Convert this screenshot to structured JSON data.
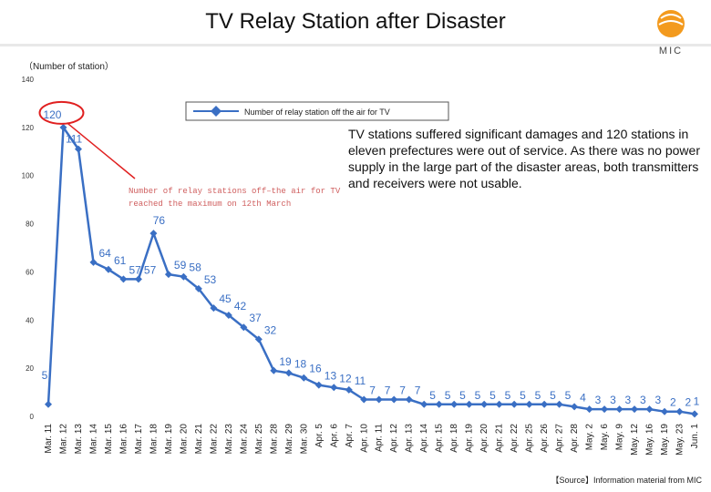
{
  "header": {
    "title": "TV Relay Station after Disaster",
    "logo_text": "MIC",
    "unit_label": "（Number of station）",
    "source": "【Source】Information material from MIC"
  },
  "callout": {
    "text": "TV stations suffered significant damages and 120 stations in eleven prefectures were out of service. As there was no power supply in the large part of the disaster areas, both transmitters and receivers were not usable."
  },
  "annotation": {
    "line1": "Number of relay stations off–the air for TV",
    "line2": "reached the maximum on 12th March"
  },
  "colors": {
    "line": "#3a6fc4",
    "label": "#3a6fc4",
    "highlight": "#e02020"
  },
  "chart_data": {
    "type": "line",
    "title": "",
    "xlabel": "",
    "ylabel": "（Number of station）",
    "ylim": [
      0,
      140
    ],
    "yticks": [
      0,
      20,
      40,
      60,
      80,
      100,
      120,
      140
    ],
    "grid": false,
    "legend": {
      "position": "top-center",
      "entries": [
        "Number of relay station off the air for TV"
      ]
    },
    "categories": [
      "Mar. 11",
      "Mar. 12",
      "Mar. 13",
      "Mar. 14",
      "Mar. 15",
      "Mar. 16",
      "Mar. 17",
      "Mar. 18",
      "Mar. 19",
      "Mar. 20",
      "Mar. 21",
      "Mar. 22",
      "Mar. 23",
      "Mar. 24",
      "Mar. 25",
      "Mar. 28",
      "Mar. 29",
      "Mar. 30",
      "Apr. 5",
      "Apr. 6",
      "Apr. 7",
      "Apr. 10",
      "Apr. 11",
      "Apr. 12",
      "Apr. 13",
      "Apr. 14",
      "Apr. 15",
      "Apr. 18",
      "Apr. 19",
      "Apr. 20",
      "Apr. 21",
      "Apr. 22",
      "Apr. 25",
      "Apr. 26",
      "Apr. 27",
      "Apr. 28",
      "May. 2",
      "May. 6",
      "May. 9",
      "May. 12",
      "May. 16",
      "May. 19",
      "May. 23",
      "Jun. 1"
    ],
    "series": [
      {
        "name": "Number of relay station off the air for TV",
        "values": [
          5,
          120,
          111,
          64,
          61,
          57,
          57,
          76,
          59,
          58,
          53,
          45,
          42,
          37,
          32,
          19,
          18,
          16,
          13,
          12,
          11,
          7,
          7,
          7,
          7,
          5,
          5,
          5,
          5,
          5,
          5,
          5,
          5,
          5,
          5,
          4,
          3,
          3,
          3,
          3,
          3,
          2,
          2,
          1
        ]
      }
    ],
    "highlight": {
      "category": "Mar. 12",
      "value": 120
    }
  }
}
